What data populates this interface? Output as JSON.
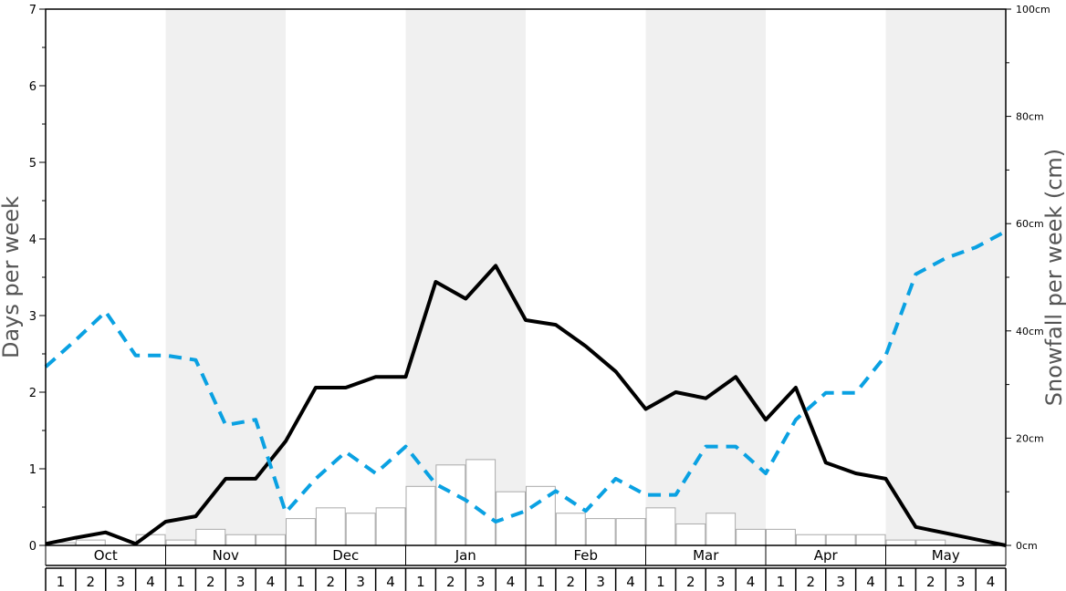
{
  "chart_data": {
    "type": "bar",
    "months": [
      "Oct",
      "Nov",
      "Dec",
      "Jan",
      "Feb",
      "Mar",
      "Apr",
      "May"
    ],
    "weeks": [
      "1",
      "2",
      "3",
      "4"
    ],
    "ylabel_left": "Days per week",
    "ylabel_right": "Snowfall per week (cm)",
    "ylim_left": [
      0,
      7
    ],
    "ylim_right": [
      0,
      100
    ],
    "left_ticks": [
      "0",
      "1",
      "2",
      "3",
      "4",
      "5",
      "6",
      "7"
    ],
    "right_ticks": [
      "0cm",
      "20cm",
      "40cm",
      "60cm",
      "80cm",
      "100cm"
    ],
    "grid": false,
    "shaded_months": [
      "Nov",
      "Jan",
      "Mar",
      "May"
    ],
    "colors": {
      "snowfall_bars": "#ffffff",
      "bar_stroke": "#aaaaaa",
      "dark_line": "#000000",
      "blue_dashed": "#0aa1e2",
      "shade": "#f0f0f0"
    },
    "series": [
      {
        "kind": "bars",
        "axis": "right",
        "values": [
          0.5,
          1,
          0,
          2,
          1,
          3,
          2,
          2,
          5,
          7,
          6,
          7,
          11,
          15,
          16,
          10,
          11,
          6,
          5,
          5,
          7,
          4,
          6,
          3,
          3,
          2,
          2,
          2,
          1,
          1,
          0,
          0
        ]
      },
      {
        "kind": "line",
        "axis": "left",
        "style": "solid",
        "values": [
          0.02,
          0.1,
          0.17,
          0.02,
          0.31,
          0.38,
          0.87,
          0.87,
          1.36,
          2.06,
          2.06,
          2.2,
          2.2,
          3.44,
          3.22,
          3.65,
          2.94,
          2.88,
          2.6,
          2.27,
          1.78,
          2.0,
          1.92,
          2.2,
          1.64,
          2.06,
          1.08,
          0.94,
          0.87,
          0.24,
          0.16,
          0.08,
          0.0
        ]
      },
      {
        "kind": "line",
        "axis": "left",
        "style": "dashed",
        "values": [
          2.33,
          2.68,
          3.05,
          2.48,
          2.48,
          2.42,
          1.57,
          1.64,
          0.43,
          0.87,
          1.22,
          0.94,
          1.29,
          0.8,
          0.59,
          0.31,
          0.45,
          0.71,
          0.45,
          0.87,
          0.66,
          0.66,
          1.29,
          1.29,
          0.94,
          1.64,
          1.99,
          1.99,
          2.48,
          3.54,
          3.75,
          3.89,
          4.1
        ]
      }
    ]
  }
}
